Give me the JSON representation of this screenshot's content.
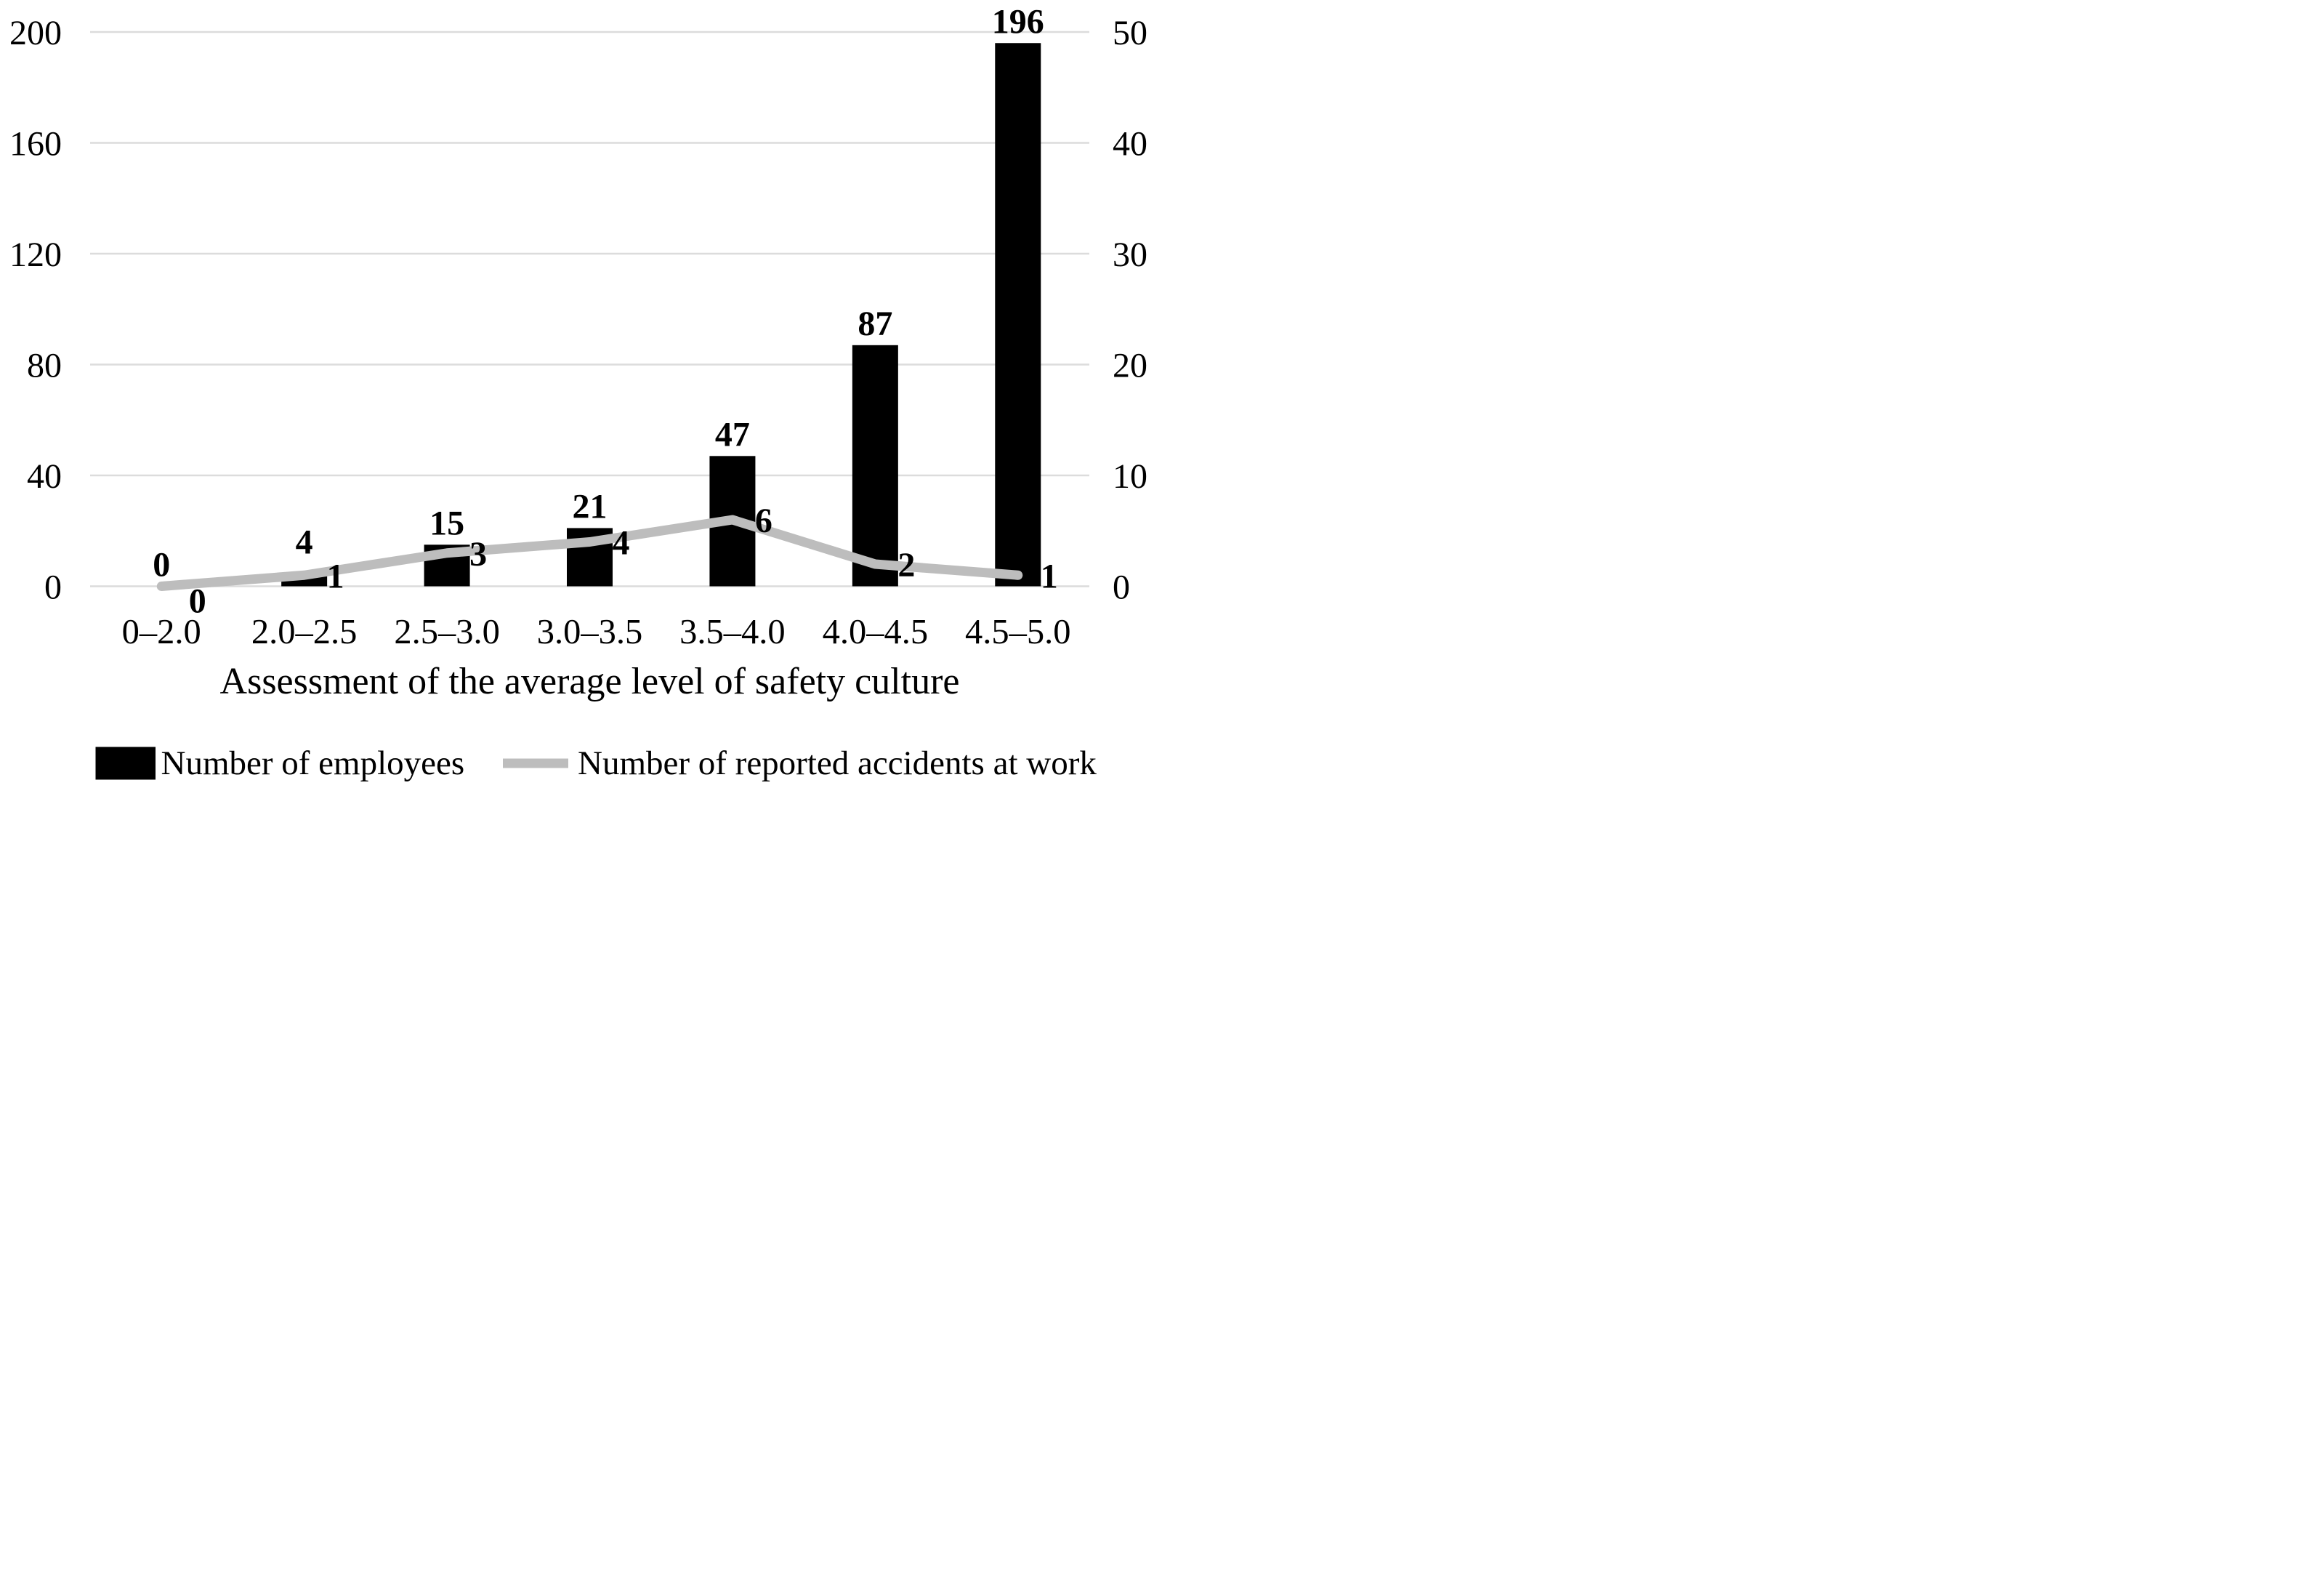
{
  "chart_data": {
    "type": "combo",
    "categories": [
      "0–2.0",
      "2.0–2.5",
      "2.5–3.0",
      "3.0–3.5",
      "3.5–4.0",
      "4.0–4.5",
      "4.5–5.0"
    ],
    "series": [
      {
        "name": "Number of employees",
        "type": "bar",
        "axis": "left",
        "color": "#000000",
        "values": [
          0,
          4,
          15,
          21,
          47,
          87,
          196
        ]
      },
      {
        "name": "Number of reported accidents at work",
        "type": "line",
        "axis": "right",
        "color": "#bdbdbd",
        "values": [
          0,
          1,
          3,
          4,
          6,
          2,
          1
        ]
      }
    ],
    "xlabel": "Assessment of the average level of safety culture",
    "left_axis": {
      "min": 0,
      "max": 200,
      "ticks": [
        0,
        40,
        80,
        120,
        160,
        200
      ]
    },
    "right_axis": {
      "min": 0,
      "max": 50,
      "ticks": [
        0,
        10,
        20,
        30,
        40,
        50
      ]
    },
    "grid": true,
    "grid_color": "#dcdcdc",
    "background": "#ffffff",
    "data_labels": true,
    "legend_position": "bottom"
  }
}
